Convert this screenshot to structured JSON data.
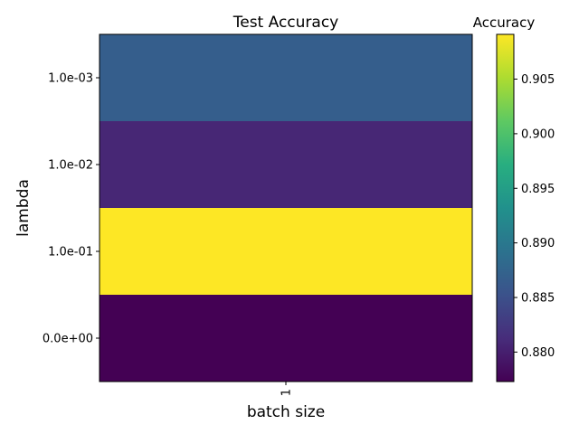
{
  "chart_data": {
    "type": "heatmap",
    "title": "Test Accuracy",
    "xlabel": "batch size",
    "ylabel": "lambda",
    "x_categories": [
      "1"
    ],
    "y_categories": [
      "1.0e-03",
      "1.0e-02",
      "1.0e-01",
      "0.0e+00"
    ],
    "values": [
      [
        0.8868
      ],
      [
        0.8807
      ],
      [
        0.9091
      ],
      [
        0.8773
      ]
    ],
    "colorbar": {
      "label": "Accuracy",
      "vmin": 0.8773,
      "vmax": 0.9091,
      "ticks": [
        0.88,
        0.885,
        0.89,
        0.895,
        0.9,
        0.905
      ],
      "tick_labels": [
        "0.880",
        "0.885",
        "0.890",
        "0.895",
        "0.900",
        "0.905"
      ]
    },
    "colormap": "viridis"
  }
}
